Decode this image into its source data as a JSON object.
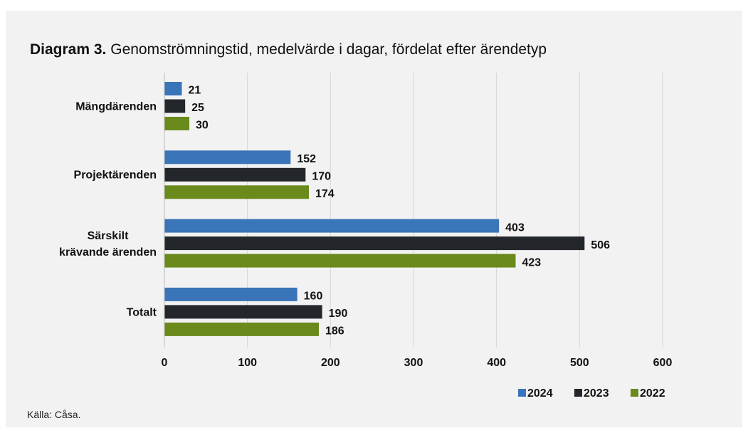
{
  "chart_data": {
    "type": "hbar",
    "title": {
      "label": "Diagram 3.",
      "text": "Genomströmningstid, medelvärde i dagar, fördelat efter ärendetyp"
    },
    "categories": [
      "Mängdärenden",
      "Projektärenden",
      "Särskilt\nkrävande ärenden",
      "Totalt"
    ],
    "series": [
      {
        "name": "2024",
        "color": "#3a74b9",
        "values": [
          21,
          152,
          403,
          160
        ]
      },
      {
        "name": "2023",
        "color": "#23272b",
        "values": [
          25,
          170,
          506,
          190
        ]
      },
      {
        "name": "2022",
        "color": "#6a8a1c",
        "values": [
          30,
          174,
          423,
          186
        ]
      }
    ],
    "xlim": [
      0,
      600
    ],
    "xticks": [
      0,
      100,
      200,
      300,
      400,
      500,
      600
    ],
    "grid": true,
    "legend": "bottom-right",
    "source": "Källa: Cåsa."
  }
}
